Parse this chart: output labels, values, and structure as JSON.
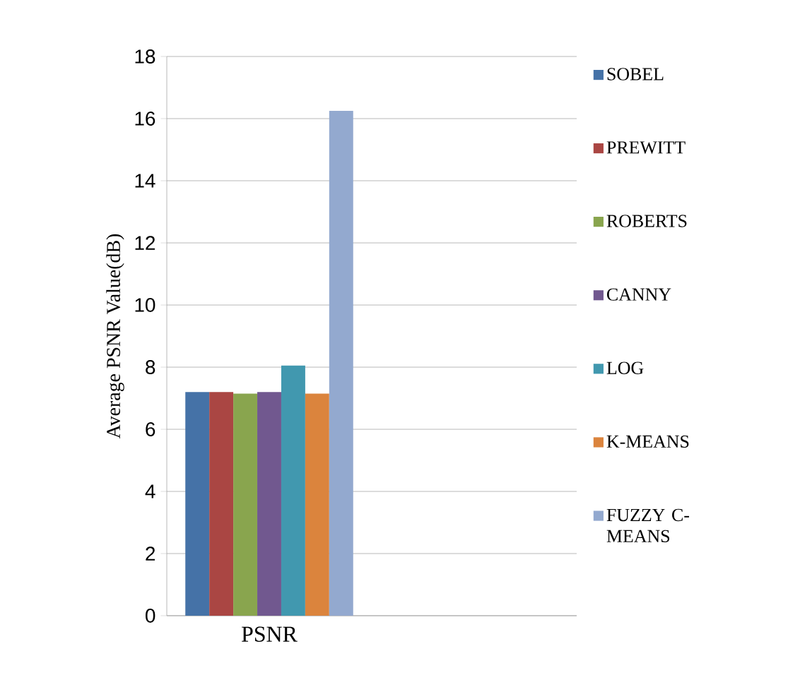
{
  "chart_data": {
    "type": "bar",
    "ylabel": "Average  PSNR Value(dB)",
    "categories": [
      "PSNR",
      null
    ],
    "series": [
      {
        "name": "SOBEL",
        "color": "#4572a7",
        "values": [
          7.2,
          null
        ]
      },
      {
        "name": "PREWITT",
        "color": "#aa4643",
        "values": [
          7.2,
          null
        ]
      },
      {
        "name": "ROBERTS",
        "color": "#89a54e",
        "values": [
          7.15,
          null
        ]
      },
      {
        "name": "CANNY",
        "color": "#71588f",
        "values": [
          7.2,
          null
        ]
      },
      {
        "name": "LOG",
        "color": "#4198af",
        "values": [
          8.05,
          null
        ]
      },
      {
        "name": "K-MEANS",
        "color": "#db843d",
        "values": [
          7.15,
          null
        ]
      },
      {
        "name": "FUZZY C-MEANS",
        "color": "#93a9cf",
        "values": [
          16.25,
          null
        ]
      }
    ],
    "ylim": [
      0,
      18
    ],
    "yticks": [
      0,
      2,
      4,
      6,
      8,
      10,
      12,
      14,
      16,
      18
    ],
    "grid": "y",
    "legend": "right"
  }
}
